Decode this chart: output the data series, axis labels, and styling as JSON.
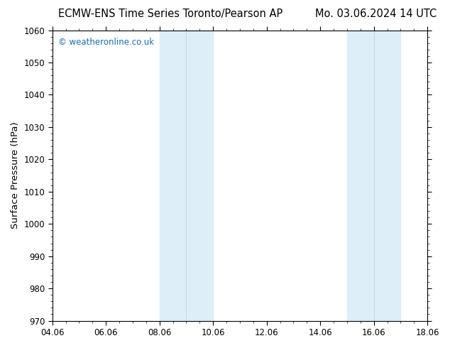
{
  "title_left": "ECMW-ENS Time Series Toronto/Pearson AP",
  "title_right": "Mo. 03.06.2024 14 UTC",
  "ylabel": "Surface Pressure (hPa)",
  "xlabel": "",
  "ylim": [
    970,
    1060
  ],
  "yticks": [
    970,
    980,
    990,
    1000,
    1010,
    1020,
    1030,
    1040,
    1050,
    1060
  ],
  "xlim_start": 4.06,
  "xlim_end": 18.06,
  "xtick_positions": [
    4.06,
    6.06,
    8.06,
    10.06,
    12.06,
    14.06,
    16.06,
    18.06
  ],
  "xtick_labels": [
    "04.06",
    "06.06",
    "08.06",
    "10.06",
    "12.06",
    "14.06",
    "16.06",
    "18.06"
  ],
  "shaded_bands": [
    {
      "x_start": 8.06,
      "x_mid": 9.06,
      "x_end": 10.06
    },
    {
      "x_start": 15.06,
      "x_mid": 16.06,
      "x_end": 17.06
    }
  ],
  "shade_color": "#ddeef8",
  "shade_divider_color": "#c0d8ec",
  "background_color": "#ffffff",
  "plot_bg_color": "#ffffff",
  "watermark_text": "© weatheronline.co.uk",
  "watermark_color": "#1a6bb5",
  "watermark_fontsize": 8.5,
  "title_fontsize": 10.5,
  "tick_fontsize": 8.5,
  "ylabel_fontsize": 9.5,
  "spine_color": "#000000",
  "fig_width": 6.34,
  "fig_height": 4.9,
  "dpi": 100
}
